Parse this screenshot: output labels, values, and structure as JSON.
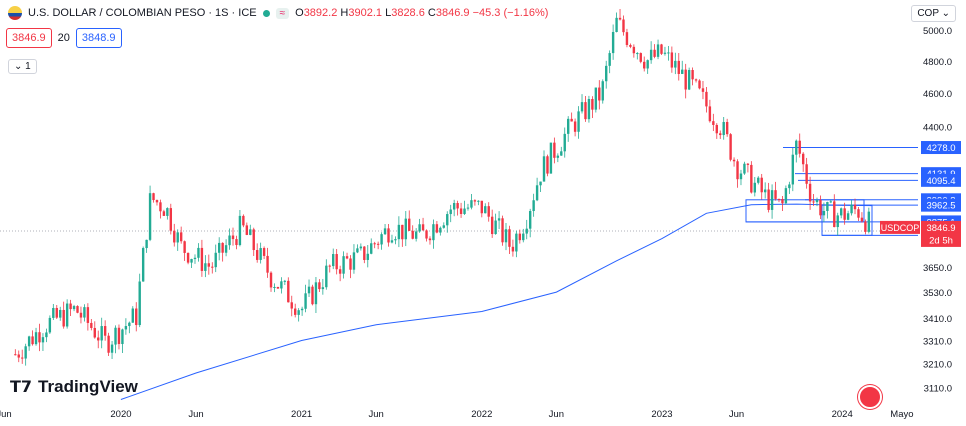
{
  "header": {
    "symbol": "U.S. DOLLAR / COLOMBIAN PESO · 1S · ICE",
    "badge": "≈",
    "open_label": "O",
    "open": "3892.2",
    "high_label": "H",
    "high": "3902.1",
    "low_label": "L",
    "low": "3828.6",
    "close_label": "C",
    "close": "3846.9",
    "change": "−45.3 (−1.16%)"
  },
  "quote_boxes": {
    "sell": "3846.9",
    "spread": "20",
    "buy": "3848.9"
  },
  "collapse_label": "1",
  "currency_button": "COP",
  "logo_text": "TradingView",
  "price_tags": [
    {
      "label": "4278.0",
      "value": 4278.0,
      "color": "#2962ff"
    },
    {
      "label": "4131.9",
      "value": 4131.9,
      "color": "#2962ff"
    },
    {
      "label": "4095.4",
      "value": 4095.4,
      "color": "#2962ff"
    },
    {
      "label": "3990.8",
      "value": 3990.8,
      "color": "#2962ff"
    },
    {
      "label": "3962.5",
      "value": 3962.5,
      "color": "#2962ff"
    },
    {
      "label": "3875.1",
      "value": 3875.1,
      "color": "#2962ff"
    },
    {
      "label": "3806.7",
      "value": 3806.7,
      "color": "#2962ff"
    }
  ],
  "current_tag": {
    "symbol": "USDCOP",
    "price": "3846.9",
    "countdown": "2d 5h",
    "color": "#f23645"
  },
  "chart_data": {
    "type": "candlestick",
    "y_scale": "log",
    "ylim": [
      3050,
      5150
    ],
    "y_ticks": [
      "5000.0",
      "4800.0",
      "4600.0",
      "4400.0",
      "3650.0",
      "3530.0",
      "3410.0",
      "3310.0",
      "3210.0",
      "3110.0"
    ],
    "x_ticks": [
      "Jun",
      "2020",
      "Jun",
      "2021",
      "Jun",
      "2022",
      "Jun",
      "2023",
      "Jun",
      "2024",
      "Mayo"
    ],
    "colors": {
      "up": "#22ab94",
      "down": "#f23645",
      "ma": "#2962ff"
    },
    "series": [
      {
        "name": "USDCOP",
        "kind": "close_weekly_approx",
        "points": [
          [
            "2019-06",
            3250
          ],
          [
            "2019-08",
            3380
          ],
          [
            "2019-10",
            3450
          ],
          [
            "2019-12",
            3300
          ],
          [
            "2020-02",
            3420
          ],
          [
            "2020-03",
            4000
          ],
          [
            "2020-04",
            3950
          ],
          [
            "2020-05",
            3750
          ],
          [
            "2020-07",
            3650
          ],
          [
            "2020-09",
            3850
          ],
          [
            "2020-11",
            3600
          ],
          [
            "2021-01",
            3450
          ],
          [
            "2021-03",
            3650
          ],
          [
            "2021-05",
            3700
          ],
          [
            "2021-07",
            3850
          ],
          [
            "2021-09",
            3800
          ],
          [
            "2021-11",
            3950
          ],
          [
            "2022-01",
            3950
          ],
          [
            "2022-03",
            3750
          ],
          [
            "2022-04",
            3900
          ],
          [
            "2022-05",
            4150
          ],
          [
            "2022-07",
            4400
          ],
          [
            "2022-09",
            4600
          ],
          [
            "2022-10",
            5050
          ],
          [
            "2022-12",
            4800
          ],
          [
            "2023-01",
            4850
          ],
          [
            "2023-03",
            4650
          ],
          [
            "2023-05",
            4400
          ],
          [
            "2023-06",
            4180
          ],
          [
            "2023-08",
            4000
          ],
          [
            "2023-09",
            3950
          ],
          [
            "2023-10",
            4300
          ],
          [
            "2023-11",
            4000
          ],
          [
            "2023-12",
            3920
          ],
          [
            "2024-01",
            3910
          ],
          [
            "2024-02",
            3940
          ],
          [
            "2024-03",
            3846.9
          ]
        ]
      },
      {
        "name": "MA",
        "kind": "moving_average",
        "points": [
          [
            "2020-01",
            3060
          ],
          [
            "2020-06",
            3170
          ],
          [
            "2021-01",
            3310
          ],
          [
            "2021-06",
            3380
          ],
          [
            "2022-01",
            3440
          ],
          [
            "2022-06",
            3530
          ],
          [
            "2022-10",
            3680
          ],
          [
            "2023-01",
            3790
          ],
          [
            "2023-04",
            3920
          ],
          [
            "2023-07",
            3965
          ],
          [
            "2023-10",
            3968
          ],
          [
            "2024-01",
            3962
          ],
          [
            "2024-03",
            3960
          ]
        ]
      }
    ],
    "horizontal_levels": [
      4278.0,
      4131.9,
      4095.4,
      3990.8,
      3962.5,
      3875.1,
      3806.7
    ]
  }
}
